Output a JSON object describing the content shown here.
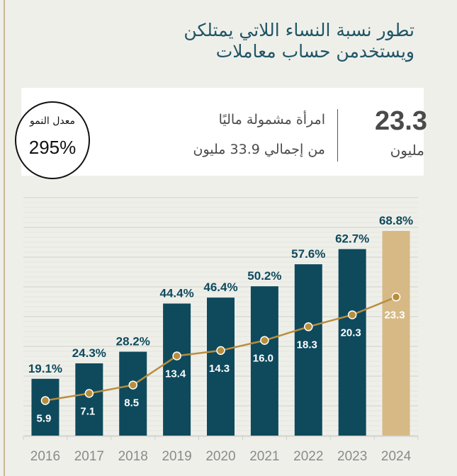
{
  "header": {
    "title_line1": "تطور نسبة النساء اللاتي  يمتلكن",
    "title_line2": "ويستخدمن حساب معاملات"
  },
  "summary": {
    "value": "23.3",
    "unit": "مليون",
    "desc_line1": "امرأة مشمولة ماليًا",
    "desc_line2": "من إجمالي 33.9 مليون",
    "growth_label": "معدل النمو",
    "growth_value": "295%"
  },
  "colors": {
    "bar": "#0e4a5c",
    "highlight_bar": "#d6b985",
    "line": "#b88e3e",
    "background": "#efefea"
  },
  "chart_data": {
    "type": "bar",
    "title": "تطور نسبة النساء اللاتي  يمتلكن ويستخدمن حساب معاملات",
    "categories": [
      "2016",
      "2017",
      "2018",
      "2019",
      "2020",
      "2021",
      "2022",
      "2023",
      "2024"
    ],
    "series": [
      {
        "type": "bar",
        "unit": "%",
        "values": [
          19.1,
          24.3,
          28.2,
          44.4,
          46.4,
          50.2,
          57.6,
          62.7,
          68.8
        ],
        "labels": [
          "19.1%",
          "24.3%",
          "28.2%",
          "44.4%",
          "46.4%",
          "50.2%",
          "57.6%",
          "62.7%",
          "68.8%"
        ],
        "highlight_index": 8
      },
      {
        "type": "line",
        "unit": "مليون",
        "values": [
          5.9,
          7.1,
          8.5,
          13.4,
          14.3,
          16.0,
          18.3,
          20.3,
          23.3
        ],
        "labels": [
          "5.9",
          "7.1",
          "8.5",
          "13.4",
          "14.3",
          "16.0",
          "18.3",
          "20.3",
          "23.3"
        ]
      }
    ],
    "ylim_bar": [
      0,
      80
    ],
    "ylim_line": [
      0,
      40
    ],
    "grid": true,
    "legend": "none"
  }
}
